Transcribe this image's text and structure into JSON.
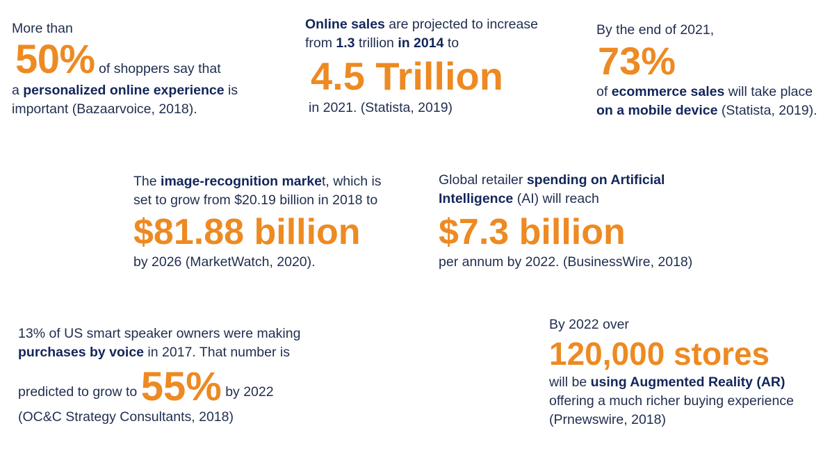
{
  "stats": {
    "s1": {
      "pre": "More than",
      "big": "50%",
      "after_big": " of shoppers say that",
      "l3_a": "a ",
      "l3_b": "personalized online experience",
      "l3_c": " is",
      "l4": "important (Bazaarvoice, 2018)."
    },
    "s2": {
      "l1_b": "Online sales",
      "l1_c": " are projected to increase",
      "l2_a": "from ",
      "l2_b": "1.3",
      "l2_c": " trillion ",
      "l2_d": "in 2014",
      "l2_e": " to",
      "big": "4.5 Trillion",
      "l4": "in 2021. (Statista, 2019)"
    },
    "s3": {
      "pre": "By the end of 2021,",
      "big": "73%",
      "l3_a": "of ",
      "l3_b": "ecommerce sales",
      "l3_c": " will take place",
      "l4_b": "on a mobile device",
      "l4_c": " (Statista, 2019)."
    },
    "s4": {
      "l1_a": "The ",
      "l1_b": "image-recognition marke",
      "l1_c": "t, which is",
      "l2": "set to grow from $20.19 billion in 2018 to",
      "big": "$81.88 billion",
      "l4": "by 2026  (MarketWatch, 2020)."
    },
    "s5": {
      "l1_a": "Global retailer ",
      "l1_b": "spending on Artificial",
      "l2_b": "Intelligence",
      "l2_c": " (AI) will reach",
      "big": "$7.3 billion",
      "l4": "per annum by 2022. (BusinessWire, 2018)"
    },
    "s6": {
      "l1": " 13% of US smart speaker owners were making",
      "l2_b": "purchases by voice",
      "l2_c": " in 2017. That number is",
      "l3_a": "predicted to grow to ",
      "big": "55%",
      "l3_c": "  by 2022",
      "l4": "(OC&C Strategy Consultants, 2018)"
    },
    "s7": {
      "pre": "By 2022 over",
      "big": "120,000 stores",
      "l3_a": "will be ",
      "l3_b": "using Augmented Reality (AR)",
      "l4": "offering a much richer buying experience",
      "l5": "(Prnewswire, 2018)"
    }
  },
  "colors": {
    "accent": "#ed8a22",
    "text": "#1f2d4e",
    "bold_text": "#13265a",
    "background": "#ffffff"
  }
}
